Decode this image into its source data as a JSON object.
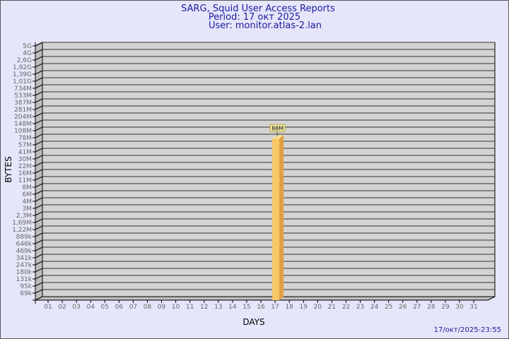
{
  "chart_data": {
    "type": "bar",
    "title": "SARG, Squid User Access Reports",
    "subtitle": [
      "Period: 17 окт 2025",
      "User: monitor.atlas-2.lan"
    ],
    "xlabel": "DAYS",
    "ylabel": "BYTES",
    "y_scale": "log",
    "y_ticks": [
      "5G",
      "4G",
      "2,6G",
      "1,92G",
      "1,39G",
      "1,01G",
      "734M",
      "533M",
      "387M",
      "281M",
      "204M",
      "148M",
      "108M",
      "78M",
      "57M",
      "41M",
      "30M",
      "22M",
      "16M",
      "11M",
      "8M",
      "6M",
      "4M",
      "3M",
      "2,3M",
      "1,69M",
      "1,22M",
      "889k",
      "646k",
      "469k",
      "341k",
      "247k",
      "180k",
      "131k",
      "95k",
      "69k"
    ],
    "categories": [
      "01",
      "02",
      "03",
      "04",
      "05",
      "06",
      "07",
      "08",
      "09",
      "10",
      "11",
      "12",
      "13",
      "14",
      "15",
      "16",
      "17",
      "18",
      "19",
      "20",
      "21",
      "22",
      "23",
      "24",
      "25",
      "26",
      "27",
      "28",
      "29",
      "30",
      "31"
    ],
    "bars": [
      {
        "category": "17",
        "label": "88M"
      }
    ],
    "grid": true,
    "colors": {
      "bar_front": "#f9c866",
      "bar_side": "#e0a040",
      "wall": "#d3d3d3",
      "background": "#e6e6fa",
      "title": "#1a1aa0"
    }
  },
  "footer": {
    "timestamp": "17/окт/2025-23:55"
  }
}
